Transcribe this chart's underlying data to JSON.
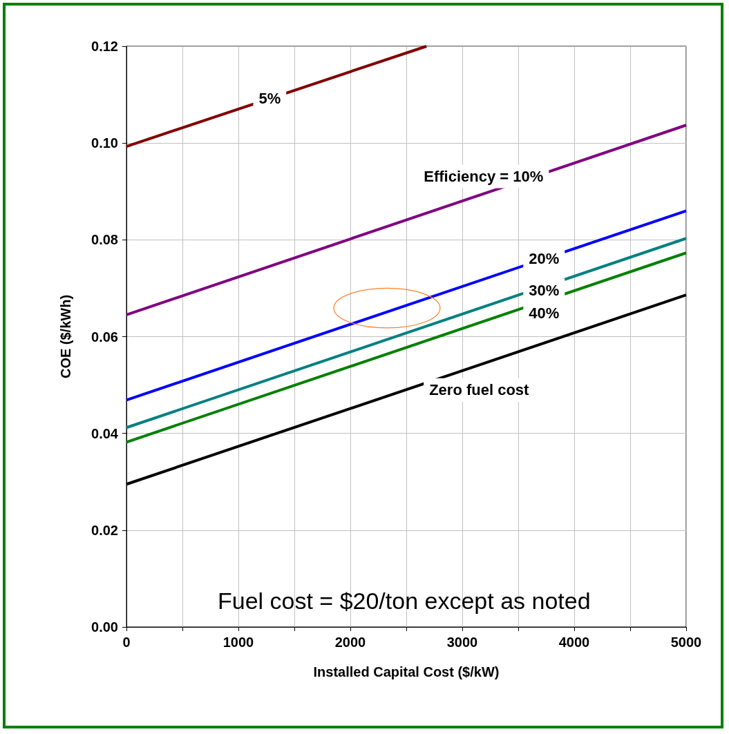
{
  "chart_data": {
    "type": "line",
    "xlabel": "Installed Capital Cost ($/kW)",
    "ylabel": "COE ($/kWh)",
    "xlim": [
      0,
      5000
    ],
    "ylim": [
      0,
      0.12
    ],
    "xticks": [
      0,
      {
        "value": 500,
        "label": null
      },
      1000,
      {
        "value": 1500,
        "label": null
      },
      2000,
      {
        "value": 2500,
        "label": null
      },
      3000,
      {
        "value": 3500,
        "label": null
      },
      4000,
      {
        "value": 4500,
        "label": null
      },
      5000
    ],
    "yticks": [
      {
        "value": 0,
        "label": "0.00"
      },
      {
        "value": 0.02,
        "label": "0.02"
      },
      {
        "value": 0.04,
        "label": "0.04"
      },
      {
        "value": 0.06,
        "label": "0.06"
      },
      {
        "value": 0.08,
        "label": "0.08"
      },
      {
        "value": 0.1,
        "label": "0.10"
      },
      {
        "value": 0.12,
        "label": "0.12"
      }
    ],
    "grid": true,
    "marker": "none",
    "line_style": "solid",
    "series": [
      {
        "name": "5%",
        "color": "#800000",
        "x": [
          0,
          2680
        ],
        "values": [
          0.0993,
          0.12
        ]
      },
      {
        "name": "Efficiency = 10%",
        "color": "#800080",
        "x": [
          0,
          5000
        ],
        "values": [
          0.0645,
          0.1037
        ]
      },
      {
        "name": "20%",
        "color": "#0000ff",
        "x": [
          0,
          5000
        ],
        "values": [
          0.0469,
          0.086
        ]
      },
      {
        "name": "30%",
        "color": "#008080",
        "x": [
          0,
          5000
        ],
        "values": [
          0.0412,
          0.0803
        ]
      },
      {
        "name": "40%",
        "color": "#008000",
        "x": [
          0,
          5000
        ],
        "values": [
          0.0382,
          0.0773
        ]
      },
      {
        "name": "Zero fuel cost",
        "color": "#000000",
        "x": [
          0,
          5000
        ],
        "values": [
          0.0295,
          0.0686
        ]
      }
    ],
    "annotations": [
      "Fuel cost = $20/ton except as noted"
    ]
  }
}
